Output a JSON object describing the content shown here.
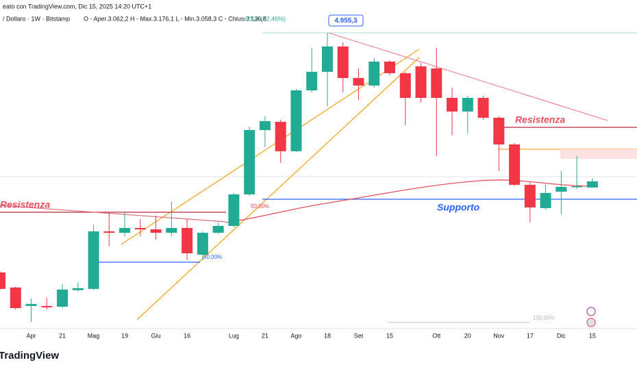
{
  "header": {
    "line1": "eato con TradingView.com, Dic 15, 2025 14:20 UTC+1",
    "line2": "/ Dollaro · 1W · Bitstamp",
    "ohlc": "O - Aper.3.062,2  H - Max.3.176,1  L - Min.3.058,3  C - Chius.3.136,8",
    "change": "+75,4 (+2,46%)"
  },
  "chart_data": {
    "type": "candlestick",
    "categories": [
      null,
      null,
      "Apr",
      null,
      "21",
      null,
      "Mag",
      null,
      "19",
      null,
      "Giu",
      null,
      "16",
      null,
      null,
      "Lug",
      null,
      "21",
      null,
      "Ago",
      null,
      "18",
      null,
      "Set",
      null,
      "15",
      null,
      null,
      "Ott",
      null,
      "20",
      null,
      "Nov",
      null,
      "17",
      null,
      "Dic",
      null,
      "15"
    ],
    "open": [
      2022,
      1838,
      1612,
      1612,
      1603,
      1805,
      1821,
      2525,
      2508,
      2567,
      2550,
      2508,
      2567,
      2240,
      2508,
      2592,
      2978,
      3765,
      3866,
      3506,
      4251,
      4478,
      4788,
      4402,
      4310,
      4603,
      4461,
      4545,
      4520,
      4159,
      3992,
      4159,
      3916,
      3589,
      3095,
      2810,
      3011,
      3070,
      3062.2
    ],
    "high": [
      2040,
      1850,
      1704,
      1713,
      1880,
      1897,
      2609,
      2760,
      2760,
      2676,
      2718,
      2886,
      2676,
      2525,
      2634,
      2995,
      3807,
      3933,
      3891,
      4268,
      4771,
      4955.3,
      4838,
      4520,
      4645,
      4620,
      4478,
      4587,
      4771,
      4285,
      4184,
      4184,
      3933,
      3606,
      3137,
      3095,
      3262,
      3447,
      3176.1
    ],
    "low": [
      1810,
      1570,
      1419,
      1570,
      1586,
      1788,
      1805,
      2341,
      2467,
      2467,
      2425,
      2467,
      2173,
      2173,
      2492,
      2575,
      2961,
      3556,
      3363,
      3497,
      4226,
      4058,
      4226,
      4134,
      4285,
      4436,
      3824,
      4101,
      3447,
      3699,
      3724,
      3891,
      3262,
      3078,
      2634,
      2793,
      2734,
      3045,
      3058.3
    ],
    "close": [
      1821,
      1586,
      1637,
      1595,
      1813,
      1830,
      2525,
      2508,
      2567,
      2550,
      2508,
      2567,
      2257,
      2508,
      2592,
      2978,
      3765,
      3874,
      3506,
      4251,
      4478,
      4788,
      4402,
      4310,
      4603,
      4461,
      4159,
      4159,
      4159,
      3992,
      4159,
      3916,
      3589,
      3095,
      2818,
      2995,
      3070,
      3078,
      3136.8
    ],
    "up_color": "#22ab94",
    "down_color": "#f23645",
    "ylim": [
      1335,
      5357
    ],
    "annotations": {
      "peak": "4.955,3",
      "resistance_right": "Resistenza",
      "resistance_left": "Resistenza",
      "support": "Supporto",
      "fib_a": "50,00%",
      "fib_b": "50,00%",
      "fib_c": "100,00%"
    }
  },
  "logo": "TradingView"
}
